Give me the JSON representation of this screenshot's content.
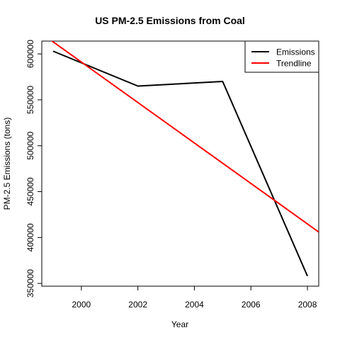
{
  "chart_data": {
    "type": "line",
    "title": "US PM-2.5 Emissions from Coal",
    "xlabel": "Year",
    "ylabel": "PM-2.5 Emissions (tons)",
    "xlim": [
      1998.6,
      2008.4
    ],
    "ylim": [
      347000,
      614000
    ],
    "x_ticks": [
      2000,
      2002,
      2004,
      2006,
      2008
    ],
    "x_tick_labels": [
      "2000",
      "2002",
      "2004",
      "2006",
      "2008"
    ],
    "y_ticks": [
      350000,
      400000,
      450000,
      500000,
      550000,
      600000
    ],
    "y_tick_labels": [
      "350000",
      "400000",
      "450000",
      "500000",
      "550000",
      "600000"
    ],
    "grid": false,
    "legend_position": "top-right",
    "series": [
      {
        "name": "Emissions",
        "color": "#000000",
        "x": [
          1999,
          2002,
          2005,
          2008
        ],
        "y": [
          603000,
          565000,
          570000,
          358000
        ]
      },
      {
        "name": "Trendline",
        "color": "#ff0000",
        "x": [
          1998.6,
          2008.4
        ],
        "y": [
          622000,
          406000
        ]
      }
    ]
  }
}
